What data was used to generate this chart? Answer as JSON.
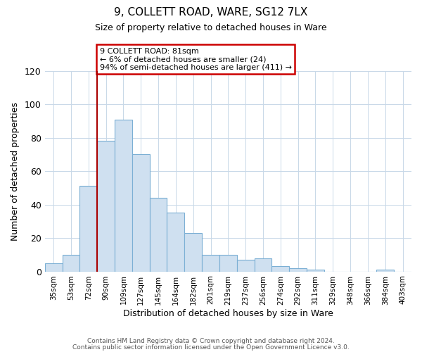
{
  "title": "9, COLLETT ROAD, WARE, SG12 7LX",
  "subtitle": "Size of property relative to detached houses in Ware",
  "xlabel": "Distribution of detached houses by size in Ware",
  "ylabel": "Number of detached properties",
  "bar_color": "#cfe0f0",
  "bar_edge_color": "#7bafd4",
  "background_color": "#ffffff",
  "grid_color": "#c8d8e8",
  "tick_labels": [
    "35sqm",
    "53sqm",
    "72sqm",
    "90sqm",
    "109sqm",
    "127sqm",
    "145sqm",
    "164sqm",
    "182sqm",
    "201sqm",
    "219sqm",
    "237sqm",
    "256sqm",
    "274sqm",
    "292sqm",
    "311sqm",
    "329sqm",
    "348sqm",
    "366sqm",
    "384sqm",
    "403sqm"
  ],
  "values": [
    5,
    10,
    51,
    78,
    91,
    70,
    44,
    35,
    23,
    10,
    10,
    7,
    8,
    3,
    2,
    1,
    0,
    0,
    0,
    1,
    0
  ],
  "ylim": [
    0,
    120
  ],
  "yticks": [
    0,
    20,
    40,
    60,
    80,
    100,
    120
  ],
  "vline_index": 3,
  "vline_color": "#aa0000",
  "annotation_text": "9 COLLETT ROAD: 81sqm\n← 6% of detached houses are smaller (24)\n94% of semi-detached houses are larger (411) →",
  "annotation_box_color": "#ffffff",
  "annotation_box_edge_color": "#cc0000",
  "footer_line1": "Contains HM Land Registry data © Crown copyright and database right 2024.",
  "footer_line2": "Contains public sector information licensed under the Open Government Licence v3.0."
}
